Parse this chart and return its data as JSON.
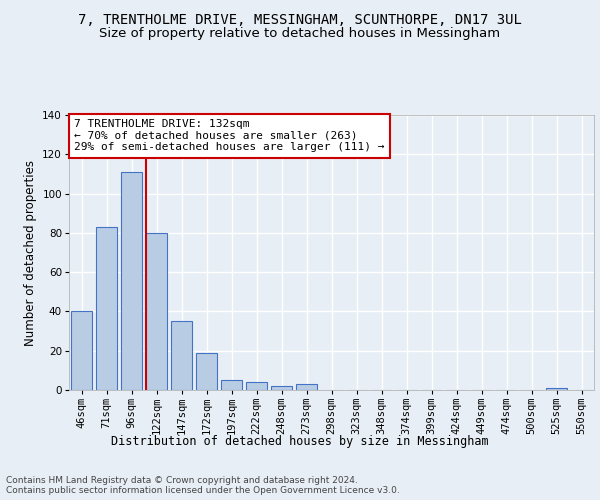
{
  "title_line1": "7, TRENTHOLME DRIVE, MESSINGHAM, SCUNTHORPE, DN17 3UL",
  "title_line2": "Size of property relative to detached houses in Messingham",
  "xlabel": "Distribution of detached houses by size in Messingham",
  "ylabel": "Number of detached properties",
  "categories": [
    "46sqm",
    "71sqm",
    "96sqm",
    "122sqm",
    "147sqm",
    "172sqm",
    "197sqm",
    "222sqm",
    "248sqm",
    "273sqm",
    "298sqm",
    "323sqm",
    "348sqm",
    "374sqm",
    "399sqm",
    "424sqm",
    "449sqm",
    "474sqm",
    "500sqm",
    "525sqm",
    "550sqm"
  ],
  "values": [
    40,
    83,
    111,
    80,
    35,
    19,
    5,
    4,
    2,
    3,
    0,
    0,
    0,
    0,
    0,
    0,
    0,
    0,
    0,
    1,
    0
  ],
  "bar_color": "#b8cce4",
  "bar_edge_color": "#4472c4",
  "vline_color": "#cc0000",
  "annotation_text": "7 TRENTHOLME DRIVE: 132sqm\n← 70% of detached houses are smaller (263)\n29% of semi-detached houses are larger (111) →",
  "annotation_box_color": "#ffffff",
  "annotation_box_edge_color": "#cc0000",
  "ylim": [
    0,
    140
  ],
  "yticks": [
    0,
    20,
    40,
    60,
    80,
    100,
    120,
    140
  ],
  "footer_text": "Contains HM Land Registry data © Crown copyright and database right 2024.\nContains public sector information licensed under the Open Government Licence v3.0.",
  "background_color": "#e8eef5",
  "plot_background_color": "#e8eef5",
  "grid_color": "#ffffff",
  "title_fontsize": 10,
  "subtitle_fontsize": 9.5,
  "axis_label_fontsize": 8.5,
  "tick_fontsize": 7.5,
  "annotation_fontsize": 8,
  "footer_fontsize": 6.5
}
